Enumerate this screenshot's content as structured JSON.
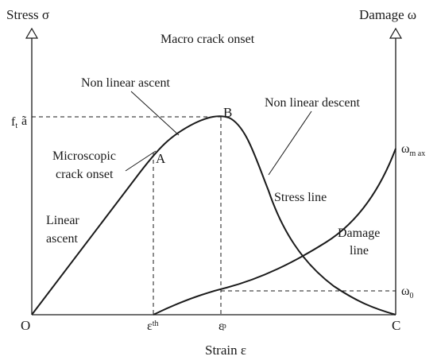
{
  "axes": {
    "y_left_label": "Stress",
    "y_left_symbol": "σ",
    "y_right_label": "Damage",
    "y_right_symbol": "ω",
    "x_label": "Strain",
    "x_symbol": "ε"
  },
  "points": {
    "origin": "O",
    "end": "C",
    "a": "A",
    "b": "B"
  },
  "ticks": {
    "left_stress": "f",
    "left_stress_sub": "t",
    "left_stress_extra": "ã",
    "right_max": "ω",
    "right_max_sub": "m ax",
    "right_zero": "ω",
    "right_zero_sub": "0",
    "x_th": "ε",
    "x_th_sub": "th",
    "x_p": "ε",
    "x_p_sub": "p"
  },
  "annotations": {
    "macro_crack": "Macro crack onset",
    "nonlinear_ascent": "Non linear ascent",
    "nonlinear_descent": "Non linear descent",
    "micro_line1": "Microscopic",
    "micro_line2": "crack onset",
    "linear_line1": "Linear",
    "linear_line2": "ascent",
    "stress_line": "Stress line",
    "damage_line1": "Damage",
    "damage_line2": "line"
  },
  "colors": {
    "ink": "#1a1a1a",
    "background": "#ffffff"
  }
}
